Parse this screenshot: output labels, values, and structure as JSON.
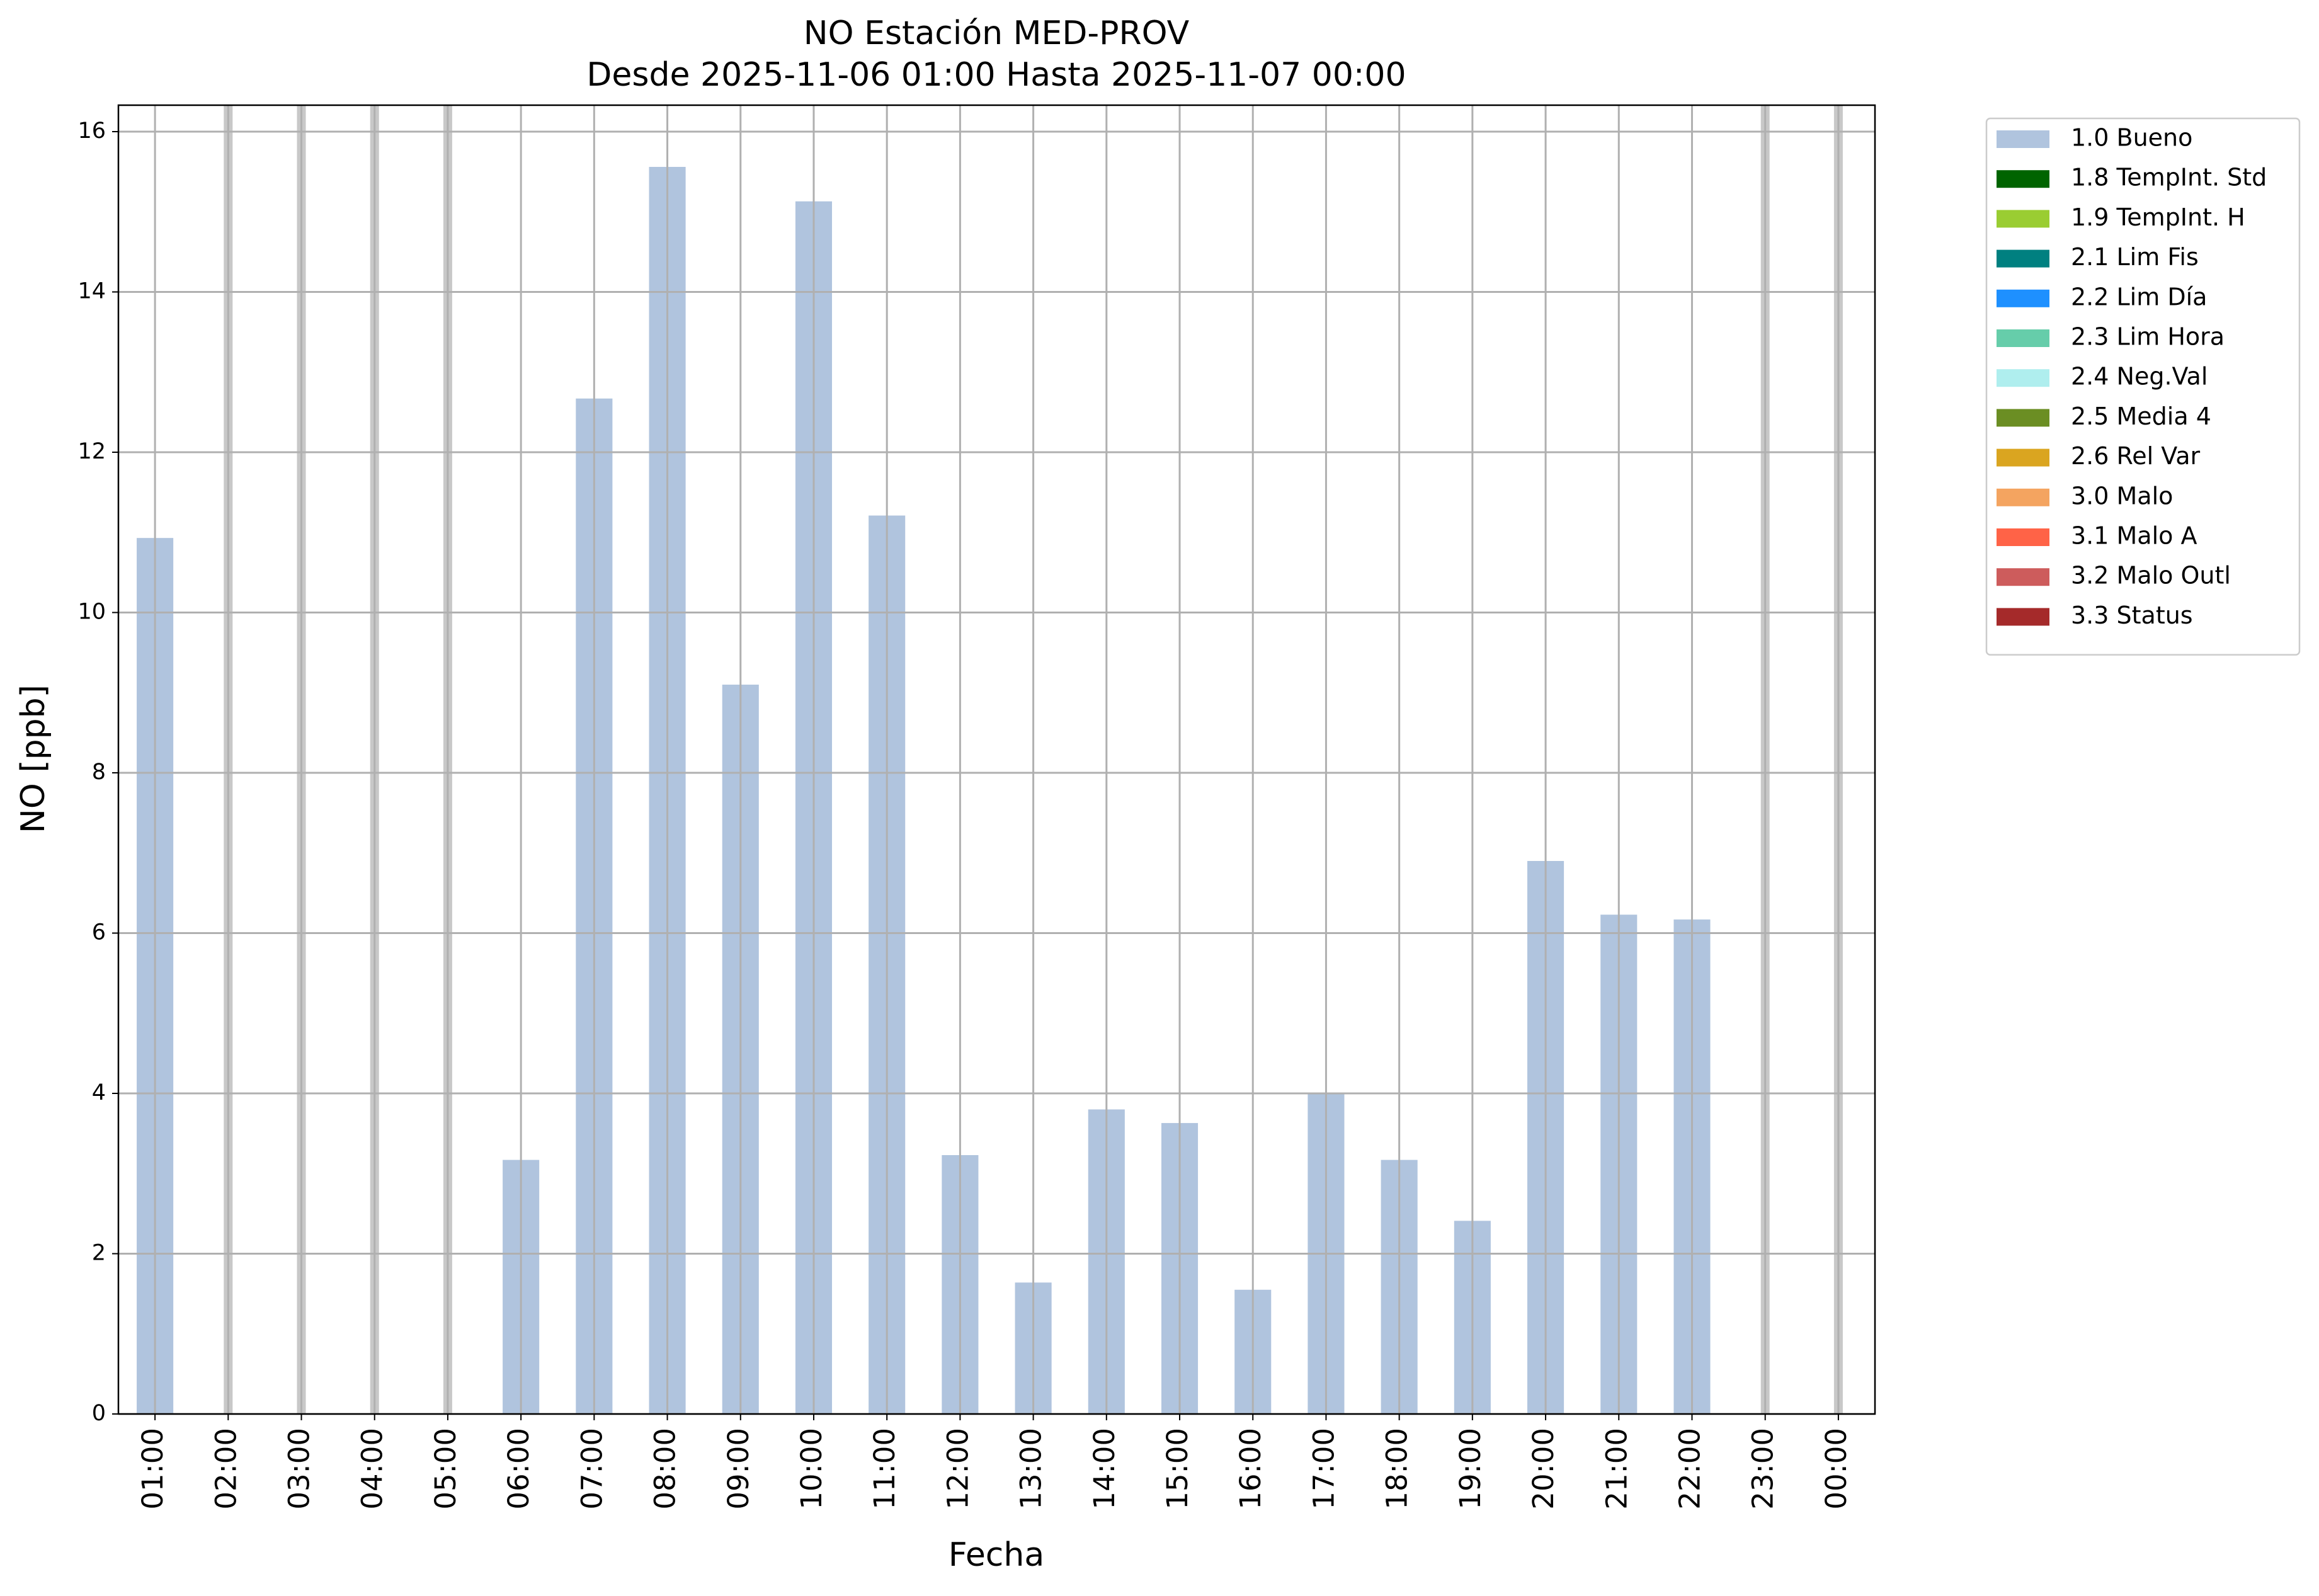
{
  "chart_data": {
    "type": "bar",
    "title": "NO Estación MED-PROV",
    "subtitle": "Desde 2025-11-06 01:00 Hasta 2025-11-07 00:00",
    "x_label": "Fecha",
    "y_label": "NO [ppb]",
    "categories": [
      "01:00",
      "02:00",
      "03:00",
      "04:00",
      "05:00",
      "06:00",
      "07:00",
      "08:00",
      "09:00",
      "10:00",
      "11:00",
      "12:00",
      "13:00",
      "14:00",
      "15:00",
      "16:00",
      "17:00",
      "18:00",
      "19:00",
      "20:00",
      "21:00",
      "22:00",
      "23:00",
      "00:00"
    ],
    "series": [
      {
        "name": "1.0 Bueno",
        "color": "#b0c4de",
        "values": [
          10.93,
          null,
          null,
          null,
          null,
          3.17,
          12.67,
          15.56,
          9.1,
          15.13,
          11.21,
          3.23,
          1.64,
          3.8,
          3.63,
          1.55,
          4.0,
          3.17,
          2.41,
          6.9,
          6.23,
          6.17,
          null,
          null
        ]
      },
      {
        "name": "1.8 TempInt. Std",
        "color": "#006400"
      },
      {
        "name": "1.9 TempInt. H",
        "color": "#9acd32"
      },
      {
        "name": "2.1 Lim Fis",
        "color": "#008080"
      },
      {
        "name": "2.2 Lim Día",
        "color": "#1e90ff"
      },
      {
        "name": "2.3 Lim Hora",
        "color": "#66cdaa"
      },
      {
        "name": "2.4 Neg.Val",
        "color": "#afeeee"
      },
      {
        "name": "2.5 Media 4",
        "color": "#6b8e23"
      },
      {
        "name": "2.6 Rel Var",
        "color": "#daa520"
      },
      {
        "name": "3.0 Malo",
        "color": "#f4a460"
      },
      {
        "name": "3.1 Malo A",
        "color": "#ff6347"
      },
      {
        "name": "3.2 Malo Outl",
        "color": "#cd5c5c"
      },
      {
        "name": "3.3 Status",
        "color": "#a52a2a"
      }
    ],
    "ylim": [
      0,
      16.33
    ],
    "yticks": [
      0,
      2,
      4,
      6,
      8,
      10,
      12,
      14,
      16
    ],
    "grid": true,
    "legend": "outside-upper-right"
  }
}
